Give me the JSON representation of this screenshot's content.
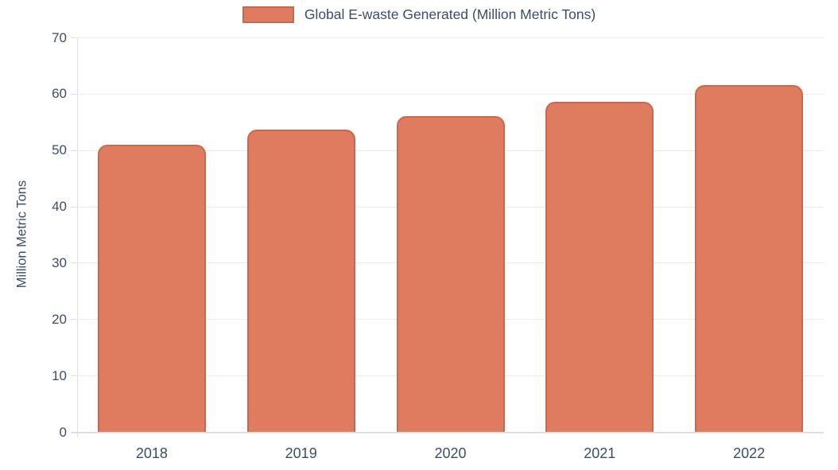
{
  "chart_data": {
    "type": "bar",
    "title": "",
    "legend": {
      "label": "Global E-waste Generated (Million Metric Tons)",
      "position": "top"
    },
    "categories": [
      "2018",
      "2019",
      "2020",
      "2021",
      "2022"
    ],
    "series": [
      {
        "name": "Global E-waste Generated (Million Metric Tons)",
        "values": [
          51.0,
          53.6,
          56.0,
          58.6,
          61.6
        ]
      }
    ],
    "xlabel": "",
    "ylabel": "Million Metric Tons",
    "ylim": [
      0,
      70
    ],
    "yticks": [
      0,
      10,
      20,
      30,
      40,
      50,
      60,
      70
    ],
    "grid": true,
    "colors": {
      "bar_fill": "#DF7B5F",
      "bar_border": "#C66950",
      "text": "#3D4D68",
      "grid": "#EBEBEB",
      "axis": "#DFDFDF"
    }
  }
}
